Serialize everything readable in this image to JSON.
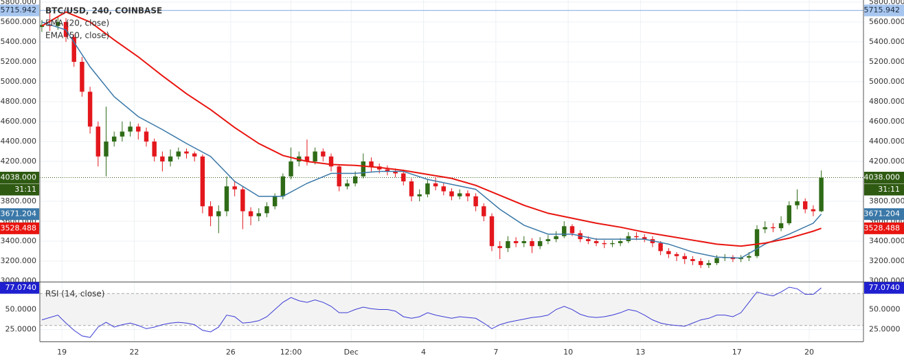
{
  "chart_data": [
    {
      "type": "candlestick",
      "title": "BTC/USD, 240, COINBASE",
      "x": [
        -20,
        -12,
        -4,
        4,
        12,
        20,
        28,
        36,
        44,
        52,
        60,
        68,
        76,
        84,
        92,
        100,
        108,
        116,
        124,
        132,
        140,
        148,
        156,
        164,
        172,
        180,
        188,
        196,
        204,
        212,
        220,
        228,
        236,
        244,
        252,
        260,
        268,
        276,
        284,
        292,
        300,
        308,
        316,
        324,
        332,
        340,
        348,
        356,
        364,
        372,
        380,
        388,
        396,
        404,
        412,
        420,
        428,
        436,
        444,
        452,
        460,
        468,
        476,
        484,
        492,
        500,
        508,
        516,
        524,
        532,
        540,
        548,
        556,
        564,
        572,
        580,
        588,
        596,
        604,
        612,
        620,
        628,
        636,
        644,
        652,
        660,
        668,
        676,
        684,
        692,
        700,
        708,
        716,
        724,
        732,
        740,
        748,
        756
      ],
      "open": [
        5550,
        5570,
        5560,
        5600,
        5450,
        5200,
        4900,
        4550,
        4250,
        4400,
        4450,
        4500,
        4550,
        4500,
        4400,
        4250,
        4200,
        4250,
        4300,
        4280,
        4250,
        3750,
        3650,
        3700,
        3950,
        3920,
        3700,
        3650,
        3680,
        3750,
        3850,
        4050,
        4200,
        4250,
        4200,
        4300,
        4250,
        4150,
        3950,
        3980,
        4050,
        4200,
        4150,
        4120,
        4100,
        4080,
        4000,
        3850,
        3870,
        3980,
        3950,
        3900,
        3850,
        3880,
        3850,
        3750,
        3650,
        3350,
        3330,
        3400,
        3380,
        3400,
        3350,
        3400,
        3420,
        3450,
        3550,
        3480,
        3420,
        3400,
        3380,
        3370,
        3380,
        3400,
        3450,
        3440,
        3420,
        3380,
        3300,
        3270,
        3250,
        3220,
        3200,
        3160,
        3180,
        3230,
        3240,
        3220,
        3235,
        3250,
        3520,
        3540,
        3530,
        3580,
        3760,
        3800,
        3720,
        3700
      ],
      "high": [
        5620,
        5700,
        5650,
        5640,
        5480,
        5250,
        4950,
        4600,
        4750,
        4500,
        4600,
        4600,
        4580,
        4540,
        4430,
        4300,
        4320,
        4340,
        4330,
        4300,
        4270,
        3800,
        3760,
        4050,
        4000,
        3950,
        3740,
        3730,
        3790,
        3880,
        4080,
        4340,
        4300,
        4420,
        4340,
        4330,
        4280,
        4170,
        4020,
        4100,
        4280,
        4240,
        4180,
        4160,
        4130,
        4110,
        4030,
        3920,
        4020,
        4040,
        3980,
        3930,
        3920,
        3910,
        3880,
        3780,
        3680,
        3400,
        3450,
        3440,
        3450,
        3430,
        3440,
        3460,
        3500,
        3600,
        3570,
        3510,
        3450,
        3430,
        3410,
        3410,
        3430,
        3490,
        3490,
        3470,
        3450,
        3400,
        3330,
        3290,
        3280,
        3250,
        3230,
        3210,
        3260,
        3270,
        3260,
        3260,
        3290,
        3560,
        3600,
        3580,
        3650,
        3800,
        3920,
        3830,
        3760,
        4110
      ],
      "low": [
        5500,
        5510,
        5520,
        5400,
        5150,
        4850,
        4480,
        4150,
        4050,
        4350,
        4400,
        4450,
        4420,
        4350,
        4200,
        4100,
        4150,
        4220,
        4230,
        4200,
        3680,
        3550,
        3480,
        3650,
        3850,
        3520,
        3560,
        3600,
        3640,
        3720,
        3820,
        4020,
        4150,
        4160,
        4170,
        4200,
        4100,
        3900,
        3920,
        3950,
        4030,
        4100,
        4080,
        4060,
        4040,
        3960,
        3800,
        3800,
        3840,
        3910,
        3860,
        3810,
        3820,
        3800,
        3700,
        3600,
        3300,
        3220,
        3290,
        3340,
        3340,
        3280,
        3320,
        3370,
        3390,
        3430,
        3450,
        3390,
        3370,
        3350,
        3330,
        3340,
        3350,
        3380,
        3410,
        3390,
        3340,
        3260,
        3230,
        3200,
        3170,
        3160,
        3130,
        3130,
        3160,
        3200,
        3190,
        3190,
        3200,
        3230,
        3480,
        3490,
        3500,
        3560,
        3720,
        3680,
        3650,
        3690
      ],
      "close": [
        5570,
        5560,
        5600,
        5450,
        5200,
        4900,
        4550,
        4250,
        4400,
        4450,
        4500,
        4550,
        4500,
        4400,
        4250,
        4200,
        4250,
        4300,
        4280,
        4250,
        3750,
        3650,
        3700,
        3950,
        3920,
        3700,
        3650,
        3680,
        3750,
        3850,
        4050,
        4200,
        4250,
        4200,
        4300,
        4250,
        4150,
        3950,
        3980,
        4050,
        4200,
        4150,
        4120,
        4100,
        4080,
        4000,
        3850,
        3870,
        3980,
        3950,
        3900,
        3850,
        3880,
        3850,
        3750,
        3650,
        3350,
        3330,
        3400,
        3380,
        3400,
        3350,
        3400,
        3420,
        3450,
        3550,
        3480,
        3420,
        3400,
        3380,
        3370,
        3380,
        3400,
        3450,
        3440,
        3420,
        3380,
        3300,
        3270,
        3250,
        3220,
        3200,
        3160,
        3180,
        3230,
        3240,
        3220,
        3235,
        3250,
        3520,
        3540,
        3530,
        3580,
        3760,
        3800,
        3720,
        3700,
        4038
      ],
      "up_color": "#2f6b17",
      "down_color": "#e3171c",
      "series": [
        {
          "name": "EMA (20, close)",
          "color": "#3a78a8",
          "x": [
            -20,
            4,
            28,
            52,
            76,
            100,
            124,
            148,
            172,
            196,
            220,
            244,
            268,
            292,
            316,
            340,
            364,
            388,
            412,
            436,
            460,
            484,
            508,
            532,
            556,
            580,
            604,
            628,
            652,
            676,
            700,
            724,
            748,
            756
          ],
          "values": [
            5600,
            5520,
            5150,
            4850,
            4650,
            4520,
            4380,
            4250,
            4000,
            3850,
            3850,
            3980,
            4080,
            4080,
            4100,
            4100,
            4020,
            3970,
            3920,
            3720,
            3560,
            3470,
            3470,
            3420,
            3420,
            3420,
            3370,
            3290,
            3240,
            3230,
            3370,
            3470,
            3580,
            3671.204
          ]
        },
        {
          "name": "EMA (50, close)",
          "color": "#e8140f",
          "x": [
            -20,
            4,
            28,
            52,
            76,
            100,
            124,
            148,
            172,
            196,
            220,
            244,
            268,
            292,
            316,
            340,
            364,
            388,
            412,
            436,
            460,
            484,
            508,
            532,
            556,
            580,
            604,
            628,
            652,
            676,
            700,
            724,
            748,
            756
          ],
          "values": [
            5560,
            5700,
            5600,
            5420,
            5250,
            5060,
            4880,
            4720,
            4540,
            4380,
            4260,
            4200,
            4170,
            4160,
            4140,
            4110,
            4070,
            4030,
            3960,
            3860,
            3760,
            3680,
            3630,
            3580,
            3540,
            3490,
            3450,
            3410,
            3370,
            3350,
            3380,
            3430,
            3500,
            3528.488
          ]
        }
      ],
      "xlim": [
        -22,
        798
      ],
      "ylim": [
        3000,
        5800
      ],
      "yticks": [
        {
          "value": 3000,
          "label": "3000.000"
        },
        {
          "value": 3200,
          "label": "3200.000"
        },
        {
          "value": 3400,
          "label": "3400.000"
        },
        {
          "value": 3600,
          "label": "3600.000"
        },
        {
          "value": 3800,
          "label": "3800.000"
        },
        {
          "value": 4000,
          "label": "4000.000"
        },
        {
          "value": 4200,
          "label": "4200.000"
        },
        {
          "value": 4400,
          "label": "4400.000"
        },
        {
          "value": 4600,
          "label": "4600.000"
        },
        {
          "value": 4800,
          "label": "4800.000"
        },
        {
          "value": 5000,
          "label": "5000.000"
        },
        {
          "value": 5200,
          "label": "5200.000"
        },
        {
          "value": 5400,
          "label": "5400.000"
        },
        {
          "value": 5600,
          "label": "5600.000"
        },
        {
          "value": 5800,
          "label": "5800.000"
        }
      ],
      "xticks": [
        {
          "value": 0,
          "label": "19"
        },
        {
          "value": 72,
          "label": "22"
        },
        {
          "value": 168,
          "label": "26"
        },
        {
          "value": 228,
          "label": "12:00"
        },
        {
          "value": 288,
          "label": "Dec"
        },
        {
          "value": 360,
          "label": "4"
        },
        {
          "value": 432,
          "label": "7"
        },
        {
          "value": 504,
          "label": "10"
        },
        {
          "value": 576,
          "label": "13"
        },
        {
          "value": 672,
          "label": "17"
        },
        {
          "value": 744,
          "label": "20"
        }
      ],
      "price_labels": [
        {
          "value": 5715.942,
          "label": "5715.942",
          "color": "#a7c6ef",
          "text_color": "#1d2a3a",
          "line": "solid"
        },
        {
          "value": 4038,
          "label": "4038.000",
          "color": "#2f5a12",
          "text_color": "#ffffff",
          "line": "dotted"
        },
        {
          "value": 3671.204,
          "label": "3671.204",
          "color": "#3a78a8",
          "text_color": "#ffffff"
        },
        {
          "value": 3528.488,
          "label": "3528.488",
          "color": "#e8140f",
          "text_color": "#ffffff"
        }
      ],
      "countdown": "31:11",
      "grid": true
    },
    {
      "type": "line",
      "title": "RSI (14, close)",
      "color": "#3a3ad6",
      "values": [
        37,
        40,
        43,
        33,
        24,
        17,
        15,
        28,
        34,
        28,
        31,
        33,
        30,
        26,
        28,
        31,
        33,
        34,
        33,
        31,
        24,
        22,
        28,
        43,
        41,
        33,
        34,
        36,
        41,
        50,
        59,
        65,
        61,
        59,
        62,
        59,
        54,
        46,
        46,
        50,
        53,
        51,
        50,
        50,
        48,
        41,
        39,
        41,
        46,
        43,
        41,
        39,
        41,
        40,
        39,
        33,
        26,
        31,
        34,
        36,
        38,
        40,
        41,
        43,
        50,
        54,
        50,
        44,
        41,
        40,
        41,
        43,
        46,
        50,
        48,
        43,
        37,
        33,
        31,
        30,
        29,
        33,
        37,
        39,
        43,
        43,
        41,
        46,
        59,
        72,
        69,
        67,
        72,
        78,
        76,
        69,
        69,
        77.074
      ],
      "ylim": [
        10,
        84
      ],
      "yticks": [
        {
          "value": 25,
          "label": "25.0000"
        },
        {
          "value": 50,
          "label": "50.0000"
        }
      ],
      "bands": [
        30,
        70
      ],
      "last_label": {
        "value": 77.074,
        "label": "77.0740",
        "color": "#1f1fd0",
        "text_color": "#ffffff"
      },
      "grid": true
    }
  ]
}
